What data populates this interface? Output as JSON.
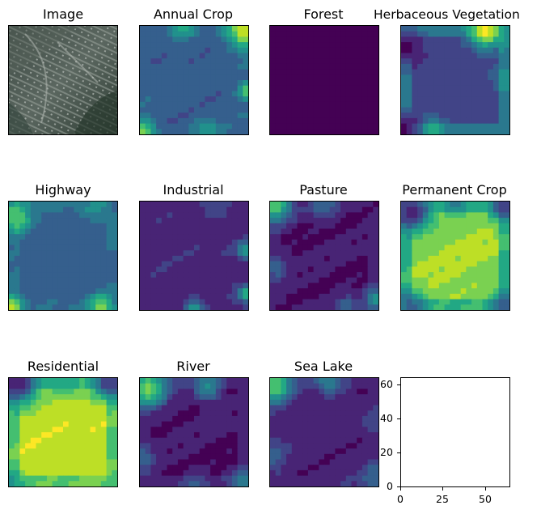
{
  "figure": {
    "panels": [
      {
        "title": "Image",
        "kind": "image"
      },
      {
        "title": "Annual Crop",
        "kind": "heatmap",
        "style": "annual"
      },
      {
        "title": "Forest",
        "kind": "heatmap",
        "style": "forest"
      },
      {
        "title": "Herbaceous Vegetation",
        "kind": "heatmap",
        "style": "herb"
      },
      {
        "title": "Highway",
        "kind": "heatmap",
        "style": "highway"
      },
      {
        "title": "Industrial",
        "kind": "heatmap",
        "style": "industrial"
      },
      {
        "title": "Pasture",
        "kind": "heatmap",
        "style": "pasture"
      },
      {
        "title": "Permanent Crop",
        "kind": "heatmap",
        "style": "permanent"
      },
      {
        "title": "Residential",
        "kind": "heatmap",
        "style": "residential"
      },
      {
        "title": "River",
        "kind": "heatmap",
        "style": "river"
      },
      {
        "title": "Sea Lake",
        "kind": "heatmap",
        "style": "sealake"
      },
      {
        "title": "",
        "kind": "empty-axes"
      }
    ],
    "colormap": "viridis"
  },
  "chart_data": {
    "type": "heatmap",
    "grid": {
      "rows": 3,
      "cols": 4
    },
    "panel_titles": [
      "Image",
      "Annual Crop",
      "Forest",
      "Herbaceous Vegetation",
      "Highway",
      "Industrial",
      "Pasture",
      "Permanent Crop",
      "Residential",
      "River",
      "Sea Lake"
    ],
    "empty_axes": {
      "xlim": [
        0,
        64
      ],
      "ylim": [
        0,
        64
      ],
      "xticks": [
        0,
        25,
        50
      ],
      "yticks": [
        0,
        20,
        40,
        60
      ]
    },
    "xtick_labels": [
      "0",
      "25",
      "50"
    ],
    "ytick_labels": [
      "0",
      "20",
      "40",
      "60"
    ]
  }
}
